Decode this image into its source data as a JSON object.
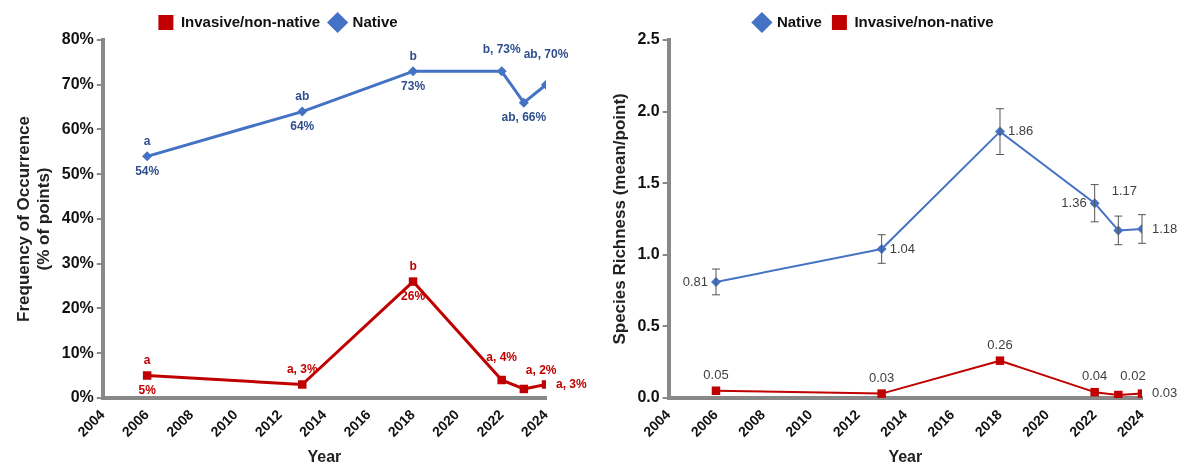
{
  "chart_data": [
    {
      "type": "line",
      "xlabel": "Year",
      "ylabel": "Frequency of Occurrence\n(% of points)",
      "x": [
        2006,
        2013,
        2018,
        2022,
        2023,
        2024
      ],
      "xlim": [
        2004,
        2024
      ],
      "xticks": [
        2004,
        2006,
        2008,
        2010,
        2012,
        2014,
        2016,
        2018,
        2020,
        2022,
        2024
      ],
      "ylim": [
        0,
        80
      ],
      "yticks": [
        {
          "value": 0,
          "label": "0%"
        },
        {
          "value": 10,
          "label": "10%"
        },
        {
          "value": 20,
          "label": "20%"
        },
        {
          "value": 30,
          "label": "30%"
        },
        {
          "value": 40,
          "label": "40%"
        },
        {
          "value": 50,
          "label": "50%"
        },
        {
          "value": 60,
          "label": "60%"
        },
        {
          "value": 70,
          "label": "70%"
        },
        {
          "value": 80,
          "label": "80%"
        }
      ],
      "series": [
        {
          "name": "Invasive/non-native",
          "color": "#c00000",
          "marker": "square",
          "values": [
            5,
            3,
            26,
            4,
            2,
            3
          ],
          "value_labels": [
            "5%",
            "a, 3%",
            "26%",
            "a, 4%",
            "a, 2%",
            "a, 3%"
          ]
        },
        {
          "name": "Native",
          "color": "#4472c4",
          "marker": "diamond",
          "values": [
            54,
            64,
            73,
            73,
            66,
            70
          ],
          "value_labels": [
            "54%",
            "64%",
            "73%",
            "b, 73%",
            "ab, 66%",
            "ab, 70%"
          ]
        }
      ],
      "annotations": [
        {
          "text": "a",
          "x": 2006,
          "y": 54
        },
        {
          "text": "ab",
          "x": 2013,
          "y": 64
        },
        {
          "text": "b",
          "x": 2018,
          "y": 73
        },
        {
          "text": "a",
          "x": 2006,
          "y": 5
        },
        {
          "text": "b",
          "x": 2018,
          "y": 26
        }
      ],
      "legend": "top",
      "grid": false,
      "line_style": "solid"
    },
    {
      "type": "line",
      "xlabel": "Year",
      "ylabel": "Species Richness (mean/point)",
      "x": [
        2006,
        2013,
        2018,
        2022,
        2023,
        2024
      ],
      "xlim": [
        2004,
        2024
      ],
      "xticks": [
        2004,
        2006,
        2008,
        2010,
        2012,
        2014,
        2016,
        2018,
        2020,
        2022,
        2024
      ],
      "ylim": [
        0,
        2.5
      ],
      "yticks": [
        {
          "value": 0,
          "label": "0.0"
        },
        {
          "value": 0.5,
          "label": "0.5"
        },
        {
          "value": 1,
          "label": "1.0"
        },
        {
          "value": 1.5,
          "label": "1.5"
        },
        {
          "value": 2,
          "label": "2.0"
        },
        {
          "value": 2.5,
          "label": "2.5"
        }
      ],
      "series": [
        {
          "name": "Native",
          "color": "#4472c4",
          "marker": "diamond",
          "values": [
            0.81,
            1.04,
            1.86,
            1.36,
            1.17,
            1.18
          ],
          "errors": [
            0.09,
            0.1,
            0.16,
            0.13,
            0.1,
            0.1
          ]
        },
        {
          "name": "Invasive/non-native",
          "color": "#c00000",
          "marker": "square",
          "values": [
            0.05,
            0.03,
            0.26,
            0.04,
            0.02,
            0.03
          ]
        }
      ],
      "data_labels": true,
      "legend": "top",
      "grid": false,
      "line_style": "solid"
    }
  ]
}
